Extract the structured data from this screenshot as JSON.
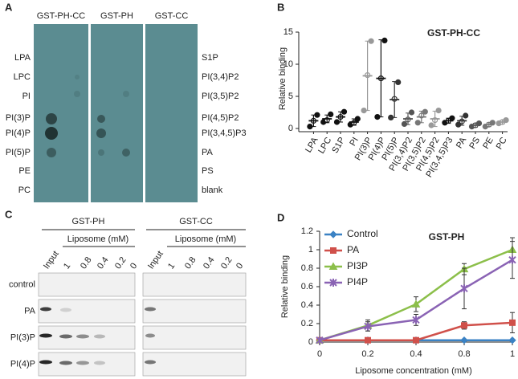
{
  "panels": {
    "a": {
      "label": "A",
      "headers": [
        "GST-PH-CC",
        "GST-PH",
        "GST-CC"
      ],
      "left_labels": [
        "LPA",
        "LPC",
        "PI",
        "PI(3)P",
        "PI(4)P",
        "PI(5)P",
        "PE",
        "PC"
      ],
      "right_labels": [
        "S1P",
        "PI(3,4)P2",
        "PI(3,5)P2",
        "PI(4,5)P2",
        "PI(3,4,5)P3",
        "PA",
        "PS",
        "blank"
      ]
    },
    "c": {
      "label": "C",
      "groups": [
        {
          "title": "GST-PH",
          "subtitle": "Liposome (mM)",
          "lanes": [
            "Input",
            "1",
            "0.8",
            "0.4",
            "0.2",
            "0"
          ]
        },
        {
          "title": "GST-CC",
          "subtitle": "Liposome (mM)",
          "lanes": [
            "Input",
            "1",
            "0.8",
            "0.4",
            "0.2",
            "0"
          ]
        }
      ],
      "rows": [
        "control",
        "PA",
        "PI(3)P",
        "PI(4)P"
      ]
    }
  },
  "chart_data": [
    {
      "type": "dotplot",
      "label": "B",
      "title": "GST-PH-CC",
      "y_label": "Relative binding",
      "categories": [
        "LPA",
        "LPC",
        "S1P",
        "PI",
        "PI(3)P",
        "PI(4)P",
        "PI(5)P",
        "PI(3,4)P2",
        "PI(3,5)P2",
        "PI(4,5)P2",
        "PI(3,4,5)P3",
        "PA",
        "PS",
        "PE",
        "PC"
      ],
      "values": [
        1.2,
        1.5,
        1.8,
        1.0,
        8.2,
        7.8,
        4.5,
        1.5,
        1.8,
        1.5,
        1.2,
        1.2,
        0.5,
        0.6,
        1.0
      ],
      "errors": [
        0.9,
        0.6,
        0.8,
        0.5,
        5.4,
        6.0,
        2.8,
        0.9,
        0.9,
        1.2,
        0.4,
        0.7,
        0.3,
        0.3,
        0.3
      ],
      "points": [
        [
          0.3,
          1.2,
          2.1
        ],
        [
          1.0,
          1.3,
          2.2
        ],
        [
          1.0,
          1.8,
          2.6
        ],
        [
          0.6,
          0.9,
          1.5
        ],
        [
          2.8,
          8.3,
          13.6
        ],
        [
          1.8,
          7.8,
          13.7
        ],
        [
          1.7,
          4.6,
          7.2
        ],
        [
          0.7,
          1.4,
          2.5
        ],
        [
          0.9,
          2.0,
          2.6
        ],
        [
          0.5,
          1.3,
          2.8
        ],
        [
          0.9,
          1.2,
          1.6
        ],
        [
          0.6,
          1.1,
          2.0
        ],
        [
          0.3,
          0.5,
          0.8
        ],
        [
          0.3,
          0.6,
          0.9
        ],
        [
          0.8,
          1.0,
          1.3
        ]
      ],
      "ylim": [
        0,
        15
      ],
      "yticks": [
        0,
        5,
        10,
        15
      ]
    },
    {
      "type": "line",
      "label": "D",
      "title": "GST-PH",
      "x_label": "Liposome concentration (mM)",
      "y_label": "Relative binding",
      "categories": [
        "0",
        "0.2",
        "0.4",
        "0.8",
        "1"
      ],
      "series": [
        {
          "name": "Control",
          "color": "#3b82c4",
          "values": [
            0.02,
            0.02,
            0.02,
            0.02,
            0.02
          ],
          "errors": [
            0,
            0,
            0,
            0,
            0
          ]
        },
        {
          "name": "PA",
          "color": "#d0504a",
          "values": [
            0.02,
            0.02,
            0.02,
            0.18,
            0.21
          ],
          "errors": [
            0,
            0,
            0,
            0.04,
            0.11
          ]
        },
        {
          "name": "PI3P",
          "color": "#8cbf4a",
          "values": [
            0.02,
            0.18,
            0.41,
            0.79,
            1.0
          ],
          "errors": [
            0,
            0.06,
            0.08,
            0.06,
            0.13
          ]
        },
        {
          "name": "PI4P",
          "color": "#8a63b4",
          "values": [
            0.02,
            0.17,
            0.24,
            0.58,
            0.89
          ],
          "errors": [
            0,
            0.05,
            0.06,
            0.22,
            0.2
          ]
        }
      ],
      "ylim": [
        0,
        1.2
      ],
      "yticks": [
        0,
        0.2,
        0.4,
        0.6,
        0.8,
        1,
        1.2
      ]
    }
  ]
}
